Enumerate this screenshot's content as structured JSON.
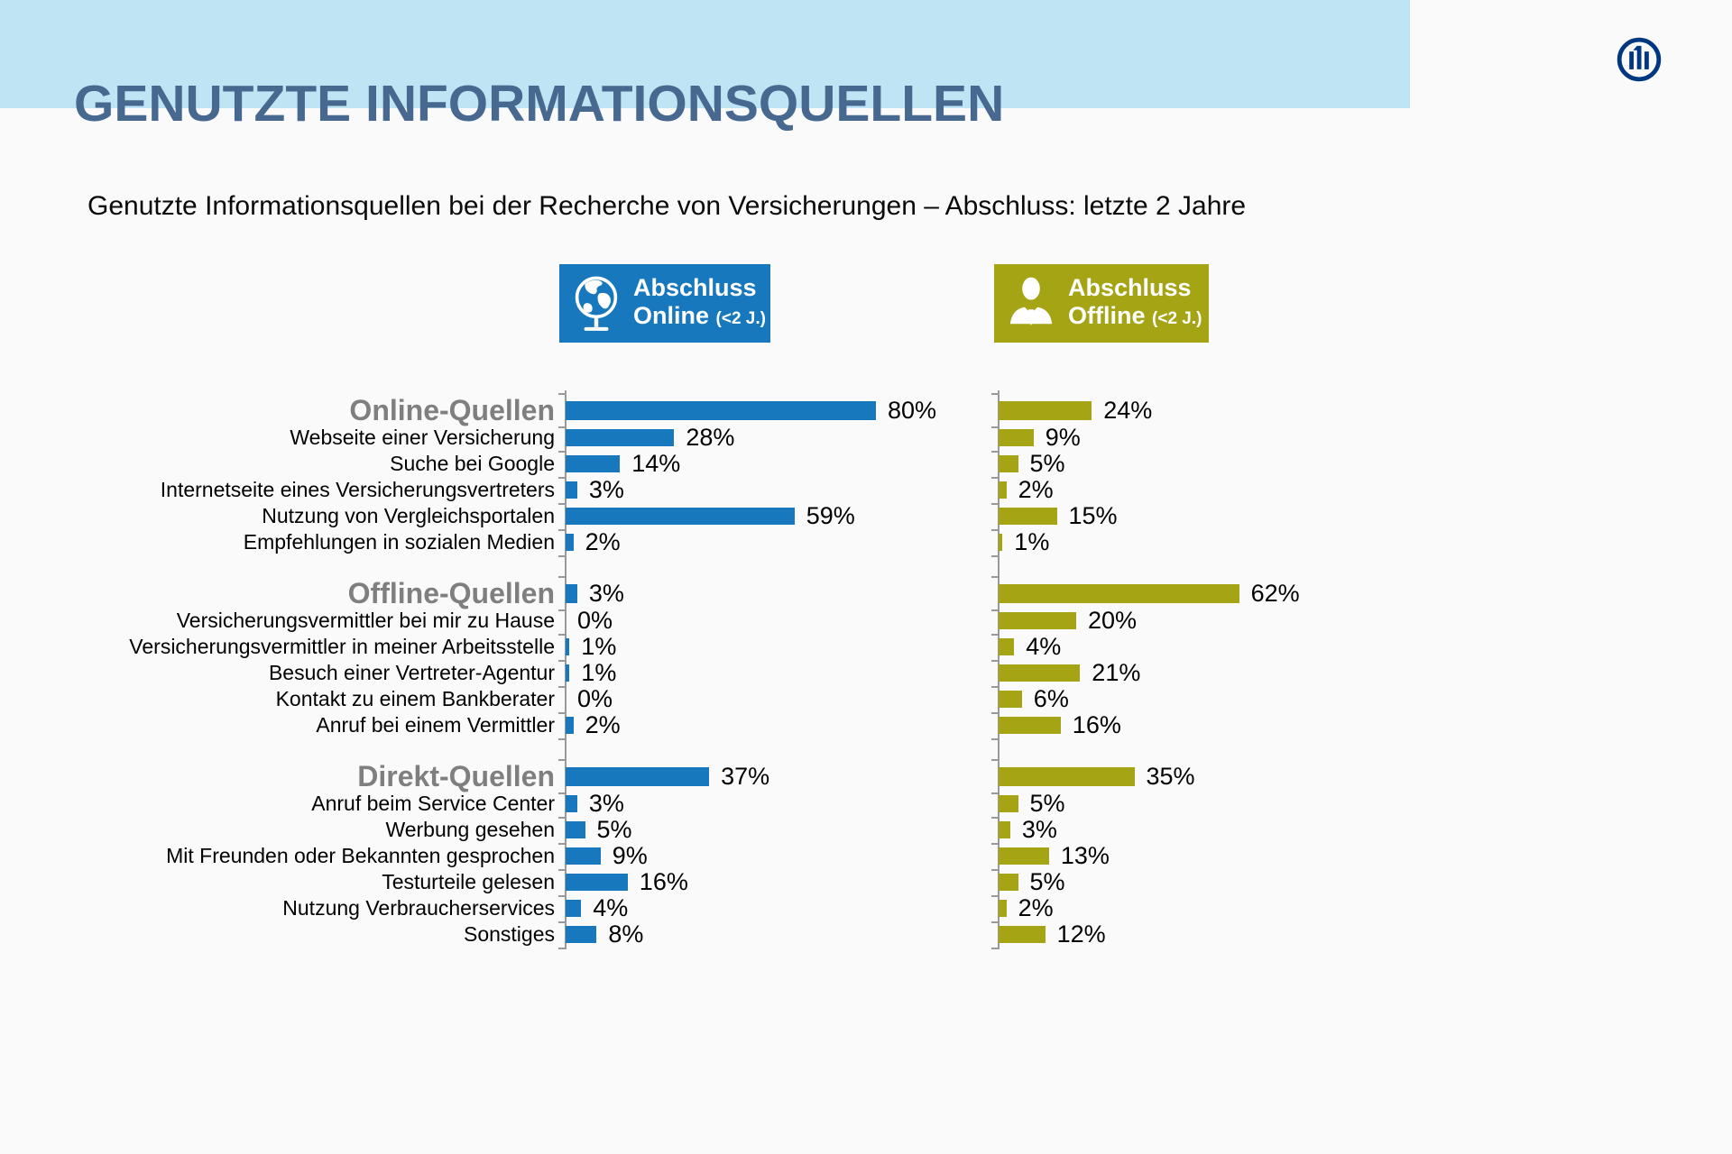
{
  "page": {
    "background_color": "#fafafa",
    "band_color": "#bfe5f4"
  },
  "header": {
    "title": "GENUTZTE INFORMATIONSQUELLEN",
    "title_color": "#47688f"
  },
  "subtitle": "Genutzte Informationsquellen bei der Recherche von Versicherungen – Abschluss: letzte 2 Jahre",
  "logo": {
    "name": "allianz-logo",
    "color": "#003781"
  },
  "legend": {
    "online": {
      "line1": "Abschluss",
      "line2": "Online",
      "suffix": "(<2 J.)",
      "color": "#1878bd",
      "icon": "globe-icon"
    },
    "offline": {
      "line1": "Abschluss",
      "line2": "Offline",
      "suffix": "(<2 J.)",
      "color": "#a4a414",
      "icon": "person-icon"
    }
  },
  "chart_data": {
    "type": "bar",
    "orientation": "horizontal",
    "unit": "%",
    "xlim": [
      0,
      100
    ],
    "grid": false,
    "legend_position": "top",
    "title": "Genutzte Informationsquellen bei der Recherche von Versicherungen – Abschluss: letzte 2 Jahre",
    "series": [
      {
        "name": "Abschluss Online (<2 J.)",
        "color": "#1878bd"
      },
      {
        "name": "Abschluss Offline (<2 J.)",
        "color": "#a4a414"
      }
    ],
    "groups": [
      {
        "header": "Online-Quellen",
        "values": {
          "online": 80,
          "offline": 24
        },
        "items": [
          {
            "label": "Webseite einer Versicherung",
            "online": 28,
            "offline": 9
          },
          {
            "label": "Suche bei Google",
            "online": 14,
            "offline": 5
          },
          {
            "label": "Internetseite eines Versicherungsvertreters",
            "online": 3,
            "offline": 2
          },
          {
            "label": "Nutzung von Vergleichsportalen",
            "online": 59,
            "offline": 15
          },
          {
            "label": "Empfehlungen in sozialen Medien",
            "online": 2,
            "offline": 1
          }
        ]
      },
      {
        "header": "Offline-Quellen",
        "values": {
          "online": 3,
          "offline": 62
        },
        "items": [
          {
            "label": "Versicherungsvermittler bei mir zu Hause",
            "online": 0,
            "offline": 20
          },
          {
            "label": "Versicherungsvermittler in meiner Arbeitsstelle",
            "online": 1,
            "offline": 4
          },
          {
            "label": "Besuch einer Vertreter-Agentur",
            "online": 1,
            "offline": 21
          },
          {
            "label": "Kontakt zu einem Bankberater",
            "online": 0,
            "offline": 6
          },
          {
            "label": "Anruf bei einem Vermittler",
            "online": 2,
            "offline": 16
          }
        ]
      },
      {
        "header": "Direkt-Quellen",
        "values": {
          "online": 37,
          "offline": 35
        },
        "items": [
          {
            "label": "Anruf beim Service Center",
            "online": 3,
            "offline": 5
          },
          {
            "label": "Werbung gesehen",
            "online": 5,
            "offline": 3
          },
          {
            "label": "Mit Freunden oder Bekannten gesprochen",
            "online": 9,
            "offline": 13
          },
          {
            "label": "Testurteile gelesen",
            "online": 16,
            "offline": 5
          },
          {
            "label": "Nutzung Verbraucherservices",
            "online": 4,
            "offline": 2
          },
          {
            "label": "Sonstiges",
            "online": 8,
            "offline": 12
          }
        ]
      }
    ]
  }
}
